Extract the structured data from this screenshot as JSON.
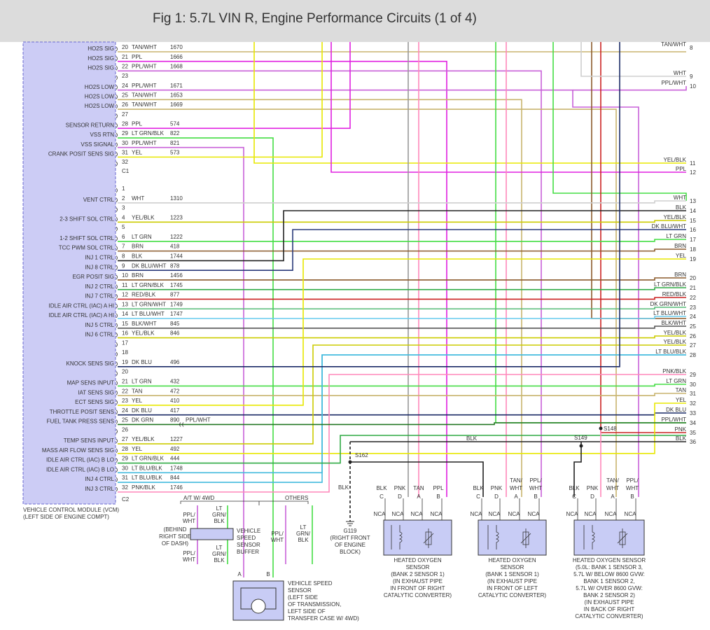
{
  "header": {
    "title": "Fig 1: 5.7L VIN R, Engine Performance Circuits (1 of 4)"
  },
  "vcm": {
    "name": "VEHICLE CONTROL MODULE (VCM)",
    "location": "(LEFT SIDE OF ENGINE COMPT)",
    "connector1": {
      "label": "C1",
      "pins": [
        {
          "pin": 20,
          "label": "HO2S SIG",
          "wire": "TAN/WHT",
          "circuit": 1670
        },
        {
          "pin": 21,
          "label": "HO2S SIG",
          "wire": "PPL",
          "circuit": 1666
        },
        {
          "pin": 22,
          "label": "HO2S SIG",
          "wire": "PPL/WHT",
          "circuit": 1668
        },
        {
          "pin": 23
        },
        {
          "pin": 24,
          "label": "HO2S LOW",
          "wire": "PPL/WHT",
          "circuit": 1671
        },
        {
          "pin": 25,
          "label": "HO2S LOW",
          "wire": "TAN/WHT",
          "circuit": 1653
        },
        {
          "pin": 26,
          "label": "HO2S LOW",
          "wire": "TAN/WHT",
          "circuit": 1669
        },
        {
          "pin": 27
        },
        {
          "pin": 28,
          "label": "SENSOR RETURN",
          "wire": "PPL",
          "circuit": 574
        },
        {
          "pin": 29,
          "label": "VSS RTN",
          "wire": "LT GRN/BLK",
          "circuit": 822
        },
        {
          "pin": 30,
          "label": "VSS SIGNAL",
          "wire": "PPL/WHT",
          "circuit": 821
        },
        {
          "pin": 31,
          "label": "CRANK POSIT SENS SIG",
          "wire": "YEL",
          "circuit": 573
        },
        {
          "pin": 32
        }
      ]
    },
    "connector2": {
      "label": "C2",
      "pins": [
        {
          "pin": 1
        },
        {
          "pin": 2,
          "label": "VENT CTRL",
          "wire": "WHT",
          "circuit": 1310
        },
        {
          "pin": 3
        },
        {
          "pin": 4,
          "label": "2-3 SHIFT SOL CTRL",
          "wire": "YEL/BLK",
          "circuit": 1223
        },
        {
          "pin": 5
        },
        {
          "pin": 6,
          "label": "1-2 SHIFT SOL CTRL",
          "wire": "LT GRN",
          "circuit": 1222
        },
        {
          "pin": 7,
          "label": "TCC PWM SOL CTRL",
          "wire": "BRN",
          "circuit": 418
        },
        {
          "pin": 8,
          "label": "INJ 1 CTRL",
          "wire": "BLK",
          "circuit": 1744
        },
        {
          "pin": 9,
          "label": "INJ 8 CTRL",
          "wire": "DK BLU/WHT",
          "circuit": 878
        },
        {
          "pin": 10,
          "label": "EGR POSIT SIG",
          "wire": "BRN",
          "circuit": 1456
        },
        {
          "pin": 11,
          "label": "INJ 2 CTRL",
          "wire": "LT GRN/BLK",
          "circuit": 1745
        },
        {
          "pin": 12,
          "label": "INJ 7 CTRL",
          "wire": "RED/BLK",
          "circuit": 877
        },
        {
          "pin": 13,
          "label": "IDLE AIR CTRL (IAC) A HI",
          "wire": "LT GRN/WHT",
          "circuit": 1749
        },
        {
          "pin": 14,
          "label": "IDLE AIR CTRL (IAC) A HI",
          "wire": "LT BLU/WHT",
          "circuit": 1747
        },
        {
          "pin": 15,
          "label": "INJ 5 CTRL",
          "wire": "BLK/WHT",
          "circuit": 845
        },
        {
          "pin": 16,
          "label": "INJ 6 CTRL",
          "wire": "YEL/BLK",
          "circuit": 846
        },
        {
          "pin": 17
        },
        {
          "pin": 18
        },
        {
          "pin": 19,
          "label": "KNOCK SENS SIG",
          "wire": "DK BLU",
          "circuit": 496
        },
        {
          "pin": 20
        },
        {
          "pin": 21,
          "label": "MAP SENS INPUT",
          "wire": "LT GRN",
          "circuit": 432
        },
        {
          "pin": 22,
          "label": "IAT SENS SIG",
          "wire": "TAN",
          "circuit": 472
        },
        {
          "pin": 23,
          "label": "ECT SENS SIG",
          "wire": "YEL",
          "circuit": 410
        },
        {
          "pin": 24,
          "label": "THROTTLE POSIT SENS",
          "wire": "DK BLU",
          "circuit": 417
        },
        {
          "pin": 25,
          "label": "FUEL TANK PRESS SENS",
          "wire": "DK GRN",
          "circuit": 890,
          "join": "PPL/WHT"
        },
        {
          "pin": 26
        },
        {
          "pin": 27,
          "label": "TEMP SENS INPUT",
          "wire": "YEL/BLK",
          "circuit": 1227
        },
        {
          "pin": 28,
          "label": "MASS AIR FLOW SENS SIG",
          "wire": "YEL",
          "circuit": 492
        },
        {
          "pin": 29,
          "label": "IDLE AIR CTRL (IAC) B LO",
          "wire": "LT GRN/BLK",
          "circuit": 444
        },
        {
          "pin": 30,
          "label": "IDLE AIR CTRL (IAC) B LO",
          "wire": "LT BLU/BLK",
          "circuit": 1748
        },
        {
          "pin": 31,
          "label": "INJ 4 CTRL",
          "wire": "LT BLU/BLK",
          "circuit": 844
        },
        {
          "pin": 32,
          "label": "INJ 3 CTRL",
          "wire": "PNK/BLK",
          "circuit": 1746
        }
      ]
    }
  },
  "right": [
    {
      "label": "TAN/WHT",
      "pin": 8
    },
    {
      "label": "WHT",
      "pin": 9
    },
    {
      "label": "PPL/WHT",
      "pin": 10
    },
    {
      "label": "YEL/BLK",
      "pin": 11
    },
    {
      "label": "PPL",
      "pin": 12
    },
    {
      "label": "WHT",
      "pin": 13
    },
    {
      "label": "BLK",
      "pin": 14
    },
    {
      "label": "YEL/BLK",
      "pin": 15
    },
    {
      "label": "DK BLU/WHT",
      "pin": 16
    },
    {
      "label": "LT GRN",
      "pin": 17
    },
    {
      "label": "BRN",
      "pin": 18
    },
    {
      "label": "YEL",
      "pin": 19
    },
    {
      "label": "BRN",
      "pin": 20
    },
    {
      "label": "LT GRN/BLK",
      "pin": 21
    },
    {
      "label": "RED/BLK",
      "pin": 22
    },
    {
      "label": "DK GRN/WHT",
      "pin": 23
    },
    {
      "label": "LT BLU/WHT",
      "pin": 24
    },
    {
      "label": "BLK/WHT",
      "pin": 25
    },
    {
      "label": "YEL/BLK",
      "pin": 26
    },
    {
      "label": "YEL/BLK",
      "pin": 27
    },
    {
      "label": "LT BLU/BLK",
      "pin": 28
    },
    {
      "label": "PNK/BLK",
      "pin": 29
    },
    {
      "label": "LT GRN",
      "pin": 30
    },
    {
      "label": "TAN",
      "pin": 31
    },
    {
      "label": "YEL",
      "pin": 32
    },
    {
      "label": "DK BLU",
      "pin": 33
    },
    {
      "label": "PPL/WHT",
      "pin": 34
    },
    {
      "label": "PNK",
      "pin": 35
    },
    {
      "label": "BLK",
      "pin": 36
    }
  ],
  "splices": {
    "s162": "S162",
    "s148": "S148",
    "s149": "S149",
    "blk_bus": "BLK",
    "blk_drop": "BLK",
    "ground": {
      "label": "G119",
      "description": [
        "(RIGHT FRONT",
        "OF ENGINE",
        "BLOCK)"
      ]
    }
  },
  "sensors": [
    {
      "pins": [
        {
          "wire": [
            "BLK"
          ],
          "letter": "C"
        },
        {
          "wire": [
            "PNK"
          ],
          "letter": "D"
        },
        {
          "wire": [
            "TAN"
          ],
          "letter": "A"
        },
        {
          "wire": [
            "PPL"
          ],
          "letter": "B"
        }
      ],
      "nca": "NCA",
      "description": [
        "HEATED OXYGEN",
        "SENSOR",
        "(BANK 2 SENSOR 1)",
        "(IN EXHAUST PIPE",
        "IN FRONT OF RIGHT",
        "CATALYTIC CONVERTER)"
      ]
    },
    {
      "pins": [
        {
          "wire": [
            "BLK"
          ],
          "letter": "C"
        },
        {
          "wire": [
            "PNK"
          ],
          "letter": "D"
        },
        {
          "wire": [
            "TAN/",
            "WHT"
          ],
          "letter": "A"
        },
        {
          "wire": [
            "PPL/",
            "WHT"
          ],
          "letter": "B"
        }
      ],
      "nca": "NCA",
      "description": [
        "HEATED OXYGEN",
        "SENSOR",
        "(BANK 1 SENSOR 1)",
        "(IN EXHAUST PIPE",
        "IN FRONT OF LEFT",
        "CATALYTIC CONVERTER)"
      ]
    },
    {
      "pins": [
        {
          "wire": [
            "BLK"
          ],
          "letter": "C"
        },
        {
          "wire": [
            "PNK"
          ],
          "letter": "D"
        },
        {
          "wire": [
            "TAN/",
            "WHT"
          ],
          "letter": "A"
        },
        {
          "wire": [
            "PPL/",
            "WHT"
          ],
          "letter": "B"
        }
      ],
      "nca": "NCA",
      "description": [
        "HEATED OXYGEN SENSOR",
        "(5.0L: BANK 1 SENSOR 3,",
        "5.7L W/ BELOW 8600 GVW:",
        "BANK 1 SENSOR 2,",
        "5.7L W/ OVER 8600 GVW:",
        "BANK 2 SENSOR 2)",
        "(IN EXHAUST PIPE",
        "IN BACK OF RIGHT",
        "CATALYTIC CONVERTER)"
      ]
    }
  ],
  "vss": {
    "option_4wd": "A/T W/ 4WD",
    "option_others": "OTHERS",
    "buffer_location": [
      "(BEHIND",
      "RIGHT SIDE",
      "OF DASH)"
    ],
    "buffer_name": [
      "VEHICLE",
      "SPEED",
      "SENSOR",
      "BUFFER"
    ],
    "wire_ppl_wht": [
      "PPL/",
      "WHT"
    ],
    "wire_lt_grn_blk": [
      "LT",
      "GRN/",
      "BLK"
    ],
    "pin_a": "A",
    "pin_b": "B",
    "sensor_description": [
      "VEHICLE SPEED",
      "SENSOR",
      "(LEFT SIDE",
      "OF TRANSMISSION,",
      "LEFT SIDE OF",
      "TRANSFER CASE W/ 4WD)"
    ]
  }
}
